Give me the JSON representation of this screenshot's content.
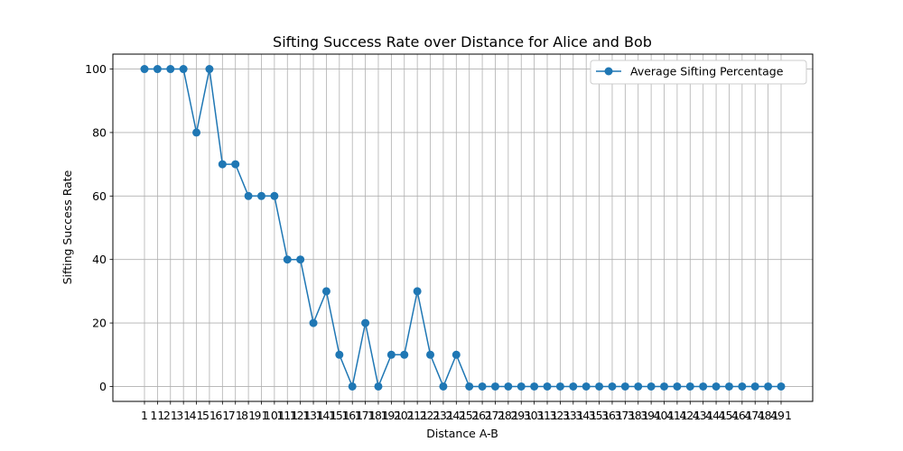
{
  "chart_data": {
    "type": "line",
    "title": "Sifting Success Rate over Distance for Alice and Bob",
    "xlabel": "Distance A-B",
    "ylabel": "Sifting Success Rate",
    "x": [
      1,
      11,
      21,
      31,
      41,
      51,
      61,
      71,
      81,
      91,
      101,
      111,
      121,
      131,
      141,
      151,
      161,
      171,
      181,
      191,
      201,
      211,
      221,
      231,
      241,
      251,
      261,
      271,
      281,
      291,
      301,
      311,
      321,
      331,
      341,
      351,
      361,
      371,
      381,
      391,
      401,
      411,
      421,
      431,
      441,
      451,
      461,
      471,
      481,
      491
    ],
    "series": [
      {
        "name": "Average Sifting Percentage",
        "values": [
          100,
          100,
          100,
          100,
          80,
          100,
          70,
          70,
          60,
          60,
          60,
          40,
          40,
          20,
          30,
          10,
          0,
          20,
          0,
          10,
          10,
          30,
          10,
          0,
          10,
          0,
          0,
          0,
          0,
          0,
          0,
          0,
          0,
          0,
          0,
          0,
          0,
          0,
          0,
          0,
          0,
          0,
          0,
          0,
          0,
          0,
          0,
          0,
          0,
          0
        ],
        "color": "#1f77b4",
        "marker": "circle"
      }
    ],
    "ylim": [
      -4.7,
      104.7
    ],
    "yticks": [
      0,
      20,
      40,
      60,
      80,
      100
    ],
    "grid": true,
    "legend_position": "top-right"
  }
}
